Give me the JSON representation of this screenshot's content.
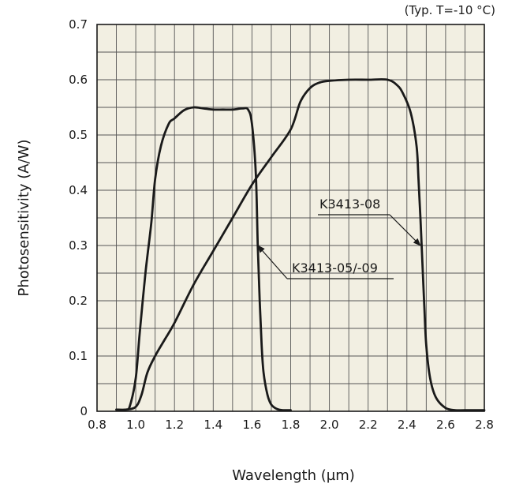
{
  "chart_data": {
    "type": "line",
    "note": "(Typ. T=-10 °C)",
    "xlabel": "Wavelength (µm)",
    "ylabel": "Photosensitivity (A/W)",
    "xlim": [
      0.8,
      2.8
    ],
    "ylim": [
      0,
      0.7
    ],
    "x_ticks": [
      "0.8",
      "1.0",
      "1.2",
      "1.4",
      "1.6",
      "1.8",
      "2.0",
      "2.2",
      "2.4",
      "2.6",
      "2.8"
    ],
    "y_ticks": [
      "0",
      "0.1",
      "0.2",
      "0.3",
      "0.4",
      "0.5",
      "0.6",
      "0.7"
    ],
    "grid": true,
    "background": "#f2efe2",
    "line_color": "#1a1a1a",
    "series": [
      {
        "name": "K3413-05/-09",
        "x": [
          0.9,
          0.95,
          0.97,
          1.0,
          1.02,
          1.05,
          1.08,
          1.1,
          1.13,
          1.17,
          1.2,
          1.25,
          1.3,
          1.35,
          1.4,
          1.45,
          1.5,
          1.55,
          1.58,
          1.6,
          1.62,
          1.63,
          1.64,
          1.65,
          1.66,
          1.68,
          1.7,
          1.73,
          1.76,
          1.8
        ],
        "y": [
          0.003,
          0.003,
          0.01,
          0.06,
          0.14,
          0.25,
          0.34,
          0.42,
          0.48,
          0.52,
          0.53,
          0.545,
          0.55,
          0.548,
          0.546,
          0.546,
          0.546,
          0.548,
          0.546,
          0.52,
          0.43,
          0.3,
          0.2,
          0.12,
          0.07,
          0.03,
          0.012,
          0.004,
          0.002,
          0.002
        ]
      },
      {
        "name": "K3413-08",
        "x": [
          0.9,
          0.95,
          1.0,
          1.03,
          1.06,
          1.1,
          1.15,
          1.2,
          1.3,
          1.4,
          1.5,
          1.6,
          1.7,
          1.8,
          1.85,
          1.9,
          1.95,
          2.0,
          2.1,
          2.2,
          2.3,
          2.35,
          2.38,
          2.42,
          2.45,
          2.46,
          2.47,
          2.48,
          2.49,
          2.5,
          2.52,
          2.55,
          2.6,
          2.65,
          2.7,
          2.8
        ],
        "y": [
          0.003,
          0.003,
          0.008,
          0.03,
          0.07,
          0.1,
          0.13,
          0.16,
          0.23,
          0.29,
          0.35,
          0.41,
          0.46,
          0.51,
          0.56,
          0.585,
          0.595,
          0.598,
          0.6,
          0.6,
          0.6,
          0.59,
          0.575,
          0.54,
          0.48,
          0.42,
          0.35,
          0.27,
          0.19,
          0.12,
          0.06,
          0.025,
          0.006,
          0.002,
          0.002,
          0.002
        ]
      }
    ],
    "annotations": [
      {
        "text": "K3413-08",
        "series": "K3413-08",
        "point": [
          2.47,
          0.3
        ]
      },
      {
        "text": "K3413-05/-09",
        "series": "K3413-05/-09",
        "point": [
          1.63,
          0.3
        ]
      }
    ]
  }
}
